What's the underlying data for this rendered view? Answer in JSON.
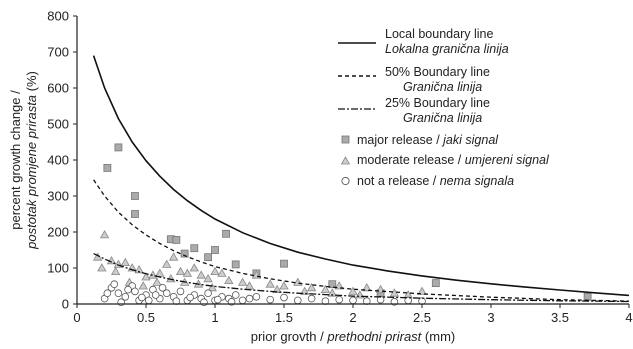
{
  "chart_data": {
    "type": "scatter",
    "xlabel": "prior grovth / ",
    "xlabel_italic": "prethodni prirast",
    "xlabel_unit": " (mm)",
    "ylabel_line1": "percent growth change /",
    "ylabel_line2_italic": "postotak promjene prirasta",
    "ylabel_unit": " (%)",
    "xlim": [
      0,
      4
    ],
    "ylim": [
      0,
      800
    ],
    "x_ticks": [
      "0",
      "0.5",
      "1",
      "1.5",
      "2",
      "2.5",
      "3",
      "3.5",
      "4"
    ],
    "y_ticks": [
      "0",
      "100",
      "200",
      "300",
      "400",
      "500",
      "600",
      "700",
      "800"
    ],
    "grid": false,
    "legend_position": "top-right",
    "lines": [
      {
        "name": "Local boundary line",
        "name_italic": "Lokalna granična linija",
        "style": "solid",
        "x": [
          0.12,
          0.2,
          0.3,
          0.4,
          0.5,
          0.6,
          0.7,
          0.8,
          0.9,
          1.0,
          1.2,
          1.4,
          1.6,
          1.8,
          2.0,
          2.25,
          2.5,
          2.75,
          3.0,
          3.25,
          3.5,
          3.75,
          4.0
        ],
        "y": [
          690,
          600,
          515,
          450,
          398,
          355,
          318,
          287,
          260,
          236,
          198,
          168,
          144,
          125,
          108,
          92,
          78,
          66,
          56,
          47,
          39,
          31,
          24
        ]
      },
      {
        "name": "50% Boundary line",
        "name_italic": "Granična linija",
        "style": "dashed",
        "x": [
          0.12,
          0.2,
          0.3,
          0.4,
          0.5,
          0.6,
          0.7,
          0.8,
          0.9,
          1.0,
          1.2,
          1.4,
          1.6,
          1.8,
          2.0,
          2.5,
          3.0,
          3.5,
          4.0
        ],
        "y": [
          345,
          300,
          255,
          220,
          192,
          168,
          148,
          131,
          117,
          104,
          85,
          70,
          58,
          49,
          41,
          28,
          19,
          12,
          8
        ]
      },
      {
        "name": "25% Boundary line",
        "name_italic": "Granična linija",
        "style": "dashdot",
        "x": [
          0.12,
          0.2,
          0.3,
          0.4,
          0.5,
          0.6,
          0.7,
          0.8,
          0.9,
          1.0,
          1.2,
          1.4,
          1.6,
          1.8,
          2.0,
          2.5,
          3.0,
          3.5,
          4.0
        ],
        "y": [
          140,
          125,
          108,
          95,
          84,
          75,
          67,
          60,
          54,
          49,
          41,
          35,
          30,
          26,
          22,
          16,
          12,
          9,
          7
        ]
      }
    ],
    "series": [
      {
        "name": "major release / ",
        "name_italic": "jaki signal",
        "marker": "square",
        "x": [
          0.22,
          0.3,
          0.42,
          0.42,
          0.68,
          0.72,
          0.78,
          0.85,
          0.95,
          1.0,
          1.08,
          1.15,
          1.3,
          1.5,
          1.85,
          2.2,
          2.6,
          3.7
        ],
        "y": [
          378,
          435,
          300,
          250,
          180,
          178,
          140,
          155,
          130,
          150,
          195,
          110,
          85,
          112,
          55,
          30,
          58,
          20
        ]
      },
      {
        "name": "moderate release / ",
        "name_italic": "umjereni signal",
        "marker": "triangle",
        "x": [
          0.15,
          0.2,
          0.25,
          0.3,
          0.35,
          0.4,
          0.45,
          0.5,
          0.55,
          0.6,
          0.65,
          0.7,
          0.75,
          0.8,
          0.85,
          0.9,
          0.95,
          1.0,
          1.05,
          1.1,
          1.2,
          1.3,
          1.4,
          1.5,
          1.6,
          1.7,
          1.8,
          1.9,
          2.0,
          2.1,
          2.2,
          2.3,
          2.4,
          2.5,
          0.18,
          0.28,
          0.38,
          0.48,
          0.58,
          0.68,
          0.78,
          0.88,
          0.98,
          1.25,
          1.45,
          1.65,
          1.85,
          2.05
        ],
        "y": [
          130,
          192,
          120,
          110,
          115,
          100,
          95,
          75,
          80,
          85,
          110,
          130,
          90,
          85,
          100,
          80,
          70,
          90,
          85,
          65,
          60,
          80,
          55,
          50,
          60,
          45,
          40,
          50,
          35,
          45,
          40,
          30,
          25,
          35,
          100,
          90,
          60,
          50,
          60,
          70,
          60,
          55,
          45,
          50,
          40,
          35,
          30,
          25
        ]
      },
      {
        "name": "not a release / ",
        "name_italic": "nema signala",
        "marker": "circle",
        "x": [
          0.2,
          0.25,
          0.3,
          0.35,
          0.4,
          0.45,
          0.5,
          0.55,
          0.6,
          0.65,
          0.7,
          0.75,
          0.8,
          0.85,
          0.9,
          0.95,
          1.0,
          1.05,
          1.1,
          1.15,
          1.2,
          1.25,
          1.3,
          1.4,
          1.5,
          1.6,
          1.7,
          1.8,
          1.9,
          2.0,
          2.1,
          2.2,
          2.3,
          2.4,
          2.5,
          0.22,
          0.32,
          0.42,
          0.52,
          0.62,
          0.72,
          0.82,
          0.92,
          1.02,
          1.12,
          0.27,
          0.37,
          0.47,
          0.57
        ],
        "y": [
          15,
          45,
          30,
          20,
          50,
          10,
          25,
          40,
          15,
          30,
          20,
          35,
          10,
          25,
          15,
          30,
          10,
          20,
          15,
          25,
          10,
          15,
          20,
          12,
          18,
          10,
          15,
          8,
          12,
          10,
          8,
          12,
          6,
          10,
          8,
          30,
          5,
          35,
          10,
          45,
          8,
          18,
          5,
          12,
          6,
          55,
          40,
          18,
          25
        ]
      }
    ]
  }
}
